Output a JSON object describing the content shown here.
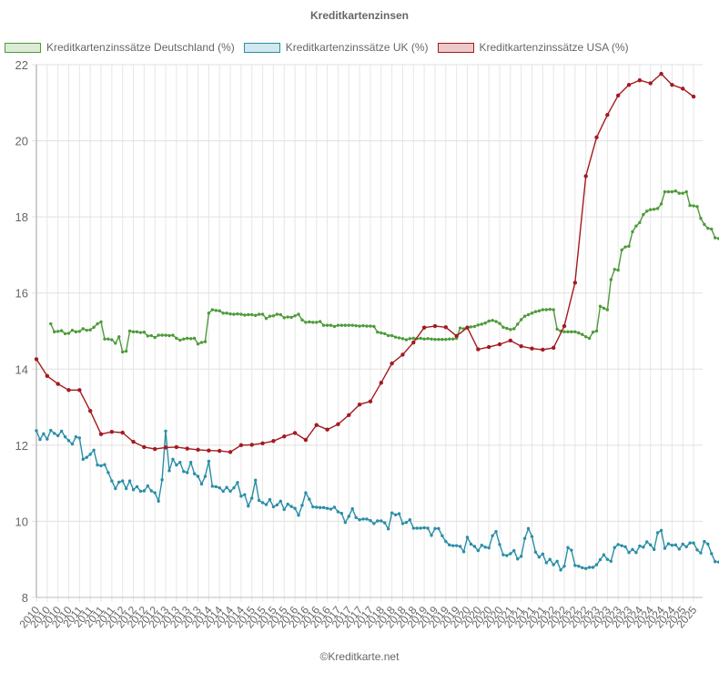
{
  "title": "Kreditkartenzinsen",
  "footer": "©Kreditkarte.net",
  "legend": [
    {
      "label": "Kreditkartenzinssätze Deutschland (%)",
      "border": "#4e9a3a",
      "fill": "#dcebd5"
    },
    {
      "label": "Kreditkartenzinssätze UK (%)",
      "border": "#2a8ea6",
      "fill": "#d0e8ee"
    },
    {
      "label": "Kreditkartenzinssätze USA (%)",
      "border": "#a31a1f",
      "fill": "#ecc9ca"
    }
  ],
  "chart_data": {
    "type": "line",
    "title": "Kreditkartenzinsen",
    "xlabel": "",
    "ylabel": "",
    "ylim": [
      8,
      22
    ],
    "yticks": [
      8,
      10,
      12,
      14,
      16,
      18,
      20,
      22
    ],
    "grid": true,
    "legend_position": "top",
    "x_start": "2010-01",
    "x_end": "2025-05",
    "x_tick_labels": [
      "2010",
      "2010",
      "2010",
      "2010",
      "2011",
      "2011",
      "2011",
      "2011",
      "2012",
      "2012",
      "2012",
      "2012",
      "2013",
      "2013",
      "2013",
      "2013",
      "2014",
      "2014",
      "2014",
      "2014",
      "2015",
      "2015",
      "2015",
      "2015",
      "2016",
      "2016",
      "2016",
      "2016",
      "2017",
      "2017",
      "2017",
      "2017",
      "2018",
      "2018",
      "2018",
      "2018",
      "2019",
      "2019",
      "2019",
      "2019",
      "2020",
      "2020",
      "2020",
      "2020",
      "2021",
      "2021",
      "2021",
      "2021",
      "2022",
      "2022",
      "2022",
      "2022",
      "2023",
      "2023",
      "2023",
      "2023",
      "2024",
      "2024",
      "2024",
      "2024",
      "2025",
      "2025"
    ],
    "series": [
      {
        "name": "Kreditkartenzinssätze Deutschland (%)",
        "color": "#4e9a3a",
        "start_month_index": 4,
        "values": [
          15.19,
          14.98,
          14.99,
          15.01,
          14.93,
          14.94,
          15.02,
          14.98,
          14.99,
          15.06,
          15.02,
          15.03,
          15.1,
          15.19,
          15.24,
          14.79,
          14.79,
          14.77,
          14.68,
          14.85,
          14.45,
          14.47,
          15.0,
          14.98,
          14.98,
          14.96,
          14.97,
          14.87,
          14.88,
          14.83,
          14.89,
          14.89,
          14.89,
          14.88,
          14.89,
          14.81,
          14.76,
          14.79,
          14.81,
          14.8,
          14.81,
          14.66,
          14.7,
          14.72,
          15.47,
          15.56,
          15.54,
          15.53,
          15.47,
          15.47,
          15.45,
          15.44,
          15.45,
          15.44,
          15.42,
          15.43,
          15.43,
          15.41,
          15.44,
          15.44,
          15.33,
          15.39,
          15.4,
          15.44,
          15.43,
          15.35,
          15.37,
          15.36,
          15.4,
          15.44,
          15.29,
          15.23,
          15.24,
          15.23,
          15.23,
          15.25,
          15.15,
          15.15,
          15.15,
          15.12,
          15.15,
          15.15,
          15.15,
          15.15,
          15.15,
          15.14,
          15.13,
          15.14,
          15.13,
          15.13,
          15.12,
          14.97,
          14.95,
          14.93,
          14.88,
          14.88,
          14.84,
          14.82,
          14.8,
          14.77,
          14.8,
          14.81,
          14.8,
          14.81,
          14.79,
          14.8,
          14.79,
          14.78,
          14.78,
          14.78,
          14.78,
          14.79,
          14.79,
          14.81,
          15.08,
          15.06,
          15.1,
          15.11,
          15.12,
          15.16,
          15.18,
          15.21,
          15.26,
          15.28,
          15.25,
          15.2,
          15.1,
          15.07,
          15.04,
          15.06,
          15.18,
          15.3,
          15.39,
          15.43,
          15.47,
          15.51,
          15.53,
          15.56,
          15.56,
          15.57,
          15.56,
          15.05,
          15.0,
          14.98,
          14.98,
          14.98,
          14.98,
          14.95,
          14.91,
          14.85,
          14.81,
          14.97,
          15.0,
          15.65,
          15.6,
          15.56,
          16.35,
          16.62,
          16.6,
          17.13,
          17.21,
          17.23,
          17.61,
          17.76,
          17.85,
          18.06,
          18.15,
          18.19,
          18.2,
          18.22,
          18.34,
          18.66,
          18.66,
          18.66,
          18.68,
          18.62,
          18.62,
          18.66,
          18.3,
          18.29,
          18.27,
          17.96,
          17.8,
          17.7,
          17.68,
          17.45,
          17.43
        ],
        "note": "monthly, approx. 2010-05 to 2025-05"
      },
      {
        "name": "Kreditkartenzinssätze UK (%)",
        "color": "#2a8ea6",
        "start_month_index": 0,
        "values": [
          12.38,
          12.15,
          12.3,
          12.16,
          12.39,
          12.31,
          12.25,
          12.37,
          12.22,
          12.12,
          12.03,
          12.22,
          12.19,
          11.63,
          11.68,
          11.76,
          11.87,
          11.48,
          11.46,
          11.49,
          11.28,
          11.06,
          10.86,
          11.03,
          11.06,
          10.86,
          11.06,
          10.83,
          10.91,
          10.79,
          10.8,
          10.93,
          10.8,
          10.75,
          10.53,
          11.09,
          12.37,
          11.33,
          11.63,
          11.48,
          11.55,
          11.31,
          11.28,
          11.55,
          11.25,
          11.18,
          10.98,
          11.18,
          11.58,
          10.92,
          10.91,
          10.88,
          10.79,
          10.89,
          10.79,
          10.88,
          11.02,
          10.66,
          10.7,
          10.4,
          10.61,
          11.08,
          10.55,
          10.49,
          10.44,
          10.57,
          10.38,
          10.43,
          10.53,
          10.31,
          10.45,
          10.39,
          10.34,
          10.16,
          10.42,
          10.75,
          10.58,
          10.38,
          10.37,
          10.36,
          10.36,
          10.34,
          10.32,
          10.37,
          10.25,
          10.21,
          9.97,
          10.13,
          10.33,
          10.1,
          10.04,
          10.06,
          10.06,
          10.02,
          9.94,
          10.01,
          10.01,
          9.96,
          9.8,
          10.22,
          10.17,
          10.2,
          9.94,
          9.97,
          10.04,
          9.82,
          9.82,
          9.82,
          9.83,
          9.82,
          9.63,
          9.81,
          9.81,
          9.62,
          9.47,
          9.38,
          9.36,
          9.36,
          9.34,
          9.2,
          9.58,
          9.4,
          9.34,
          9.23,
          9.37,
          9.32,
          9.3,
          9.62,
          9.73,
          9.39,
          9.12,
          9.1,
          9.15,
          9.23,
          9.01,
          9.08,
          9.55,
          9.81,
          9.6,
          9.19,
          9.06,
          9.14,
          8.91,
          9.0,
          8.86,
          8.95,
          8.72,
          8.82,
          9.31,
          9.24,
          8.84,
          8.82,
          8.78,
          8.76,
          8.79,
          8.79,
          8.86,
          8.99,
          9.12,
          9.0,
          8.95,
          9.31,
          9.39,
          9.36,
          9.33,
          9.18,
          9.26,
          9.18,
          9.35,
          9.32,
          9.46,
          9.38,
          9.26,
          9.7,
          9.76,
          9.29,
          9.41,
          9.37,
          9.38,
          9.27,
          9.4,
          9.33,
          9.43,
          9.43,
          9.25,
          9.17,
          9.47,
          9.4,
          9.15,
          8.94,
          8.93,
          8.93,
          8.93,
          8.93
        ],
        "note": "monthly, approx. 2010-01 to 2025-05"
      },
      {
        "name": "Kreditkartenzinssätze USA (%)",
        "color": "#a31a1f",
        "points": [
          [
            "2010-Q1",
            14.26
          ],
          [
            "2010-Q2",
            13.82
          ],
          [
            "2010-Q3",
            13.61
          ],
          [
            "2010-Q4",
            13.45
          ],
          [
            "2011-Q1",
            13.45
          ],
          [
            "2011-Q2",
            12.9
          ],
          [
            "2011-Q3",
            12.29
          ],
          [
            "2011-Q4",
            12.35
          ],
          [
            "2012-Q1",
            12.33
          ],
          [
            "2012-Q2",
            12.09
          ],
          [
            "2012-Q3",
            11.95
          ],
          [
            "2012-Q4",
            11.9
          ],
          [
            "2013-Q1",
            11.94
          ],
          [
            "2013-Q2",
            11.95
          ],
          [
            "2013-Q3",
            11.91
          ],
          [
            "2013-Q4",
            11.88
          ],
          [
            "2014-Q1",
            11.86
          ],
          [
            "2014-Q2",
            11.85
          ],
          [
            "2014-Q3",
            11.82
          ],
          [
            "2014-Q4",
            12.0
          ],
          [
            "2015-Q1",
            12.01
          ],
          [
            "2015-Q2",
            12.05
          ],
          [
            "2015-Q3",
            12.11
          ],
          [
            "2015-Q4",
            12.23
          ],
          [
            "2016-Q1",
            12.32
          ],
          [
            "2016-Q2",
            12.14
          ],
          [
            "2016-Q3",
            12.53
          ],
          [
            "2016-Q4",
            12.41
          ],
          [
            "2017-Q1",
            12.55
          ],
          [
            "2017-Q2",
            12.79
          ],
          [
            "2017-Q3",
            13.07
          ],
          [
            "2017-Q4",
            13.15
          ],
          [
            "2018-Q1",
            13.64
          ],
          [
            "2018-Q2",
            14.15
          ],
          [
            "2018-Q3",
            14.38
          ],
          [
            "2018-Q4",
            14.7
          ],
          [
            "2019-Q1",
            15.09
          ],
          [
            "2019-Q2",
            15.13
          ],
          [
            "2019-Q3",
            15.1
          ],
          [
            "2019-Q4",
            14.87
          ],
          [
            "2020-Q1",
            15.09
          ],
          [
            "2020-Q2",
            14.52
          ],
          [
            "2020-Q3",
            14.58
          ],
          [
            "2020-Q4",
            14.65
          ],
          [
            "2021-Q1",
            14.75
          ],
          [
            "2021-Q2",
            14.6
          ],
          [
            "2021-Q3",
            14.54
          ],
          [
            "2021-Q4",
            14.51
          ],
          [
            "2022-Q1",
            14.56
          ],
          [
            "2022-Q2",
            15.13
          ],
          [
            "2022-Q3",
            16.27
          ],
          [
            "2022-Q4",
            19.07
          ],
          [
            "2023-Q1",
            20.09
          ],
          [
            "2023-Q2",
            20.68
          ],
          [
            "2023-Q3",
            21.19
          ],
          [
            "2023-Q4",
            21.47
          ],
          [
            "2024-Q1",
            21.59
          ],
          [
            "2024-Q2",
            21.51
          ],
          [
            "2024-Q3",
            21.76
          ],
          [
            "2024-Q4",
            21.47
          ],
          [
            "2025-Q1",
            21.37
          ],
          [
            "2025-Q2",
            21.16
          ]
        ],
        "note": "quarterly"
      }
    ]
  }
}
